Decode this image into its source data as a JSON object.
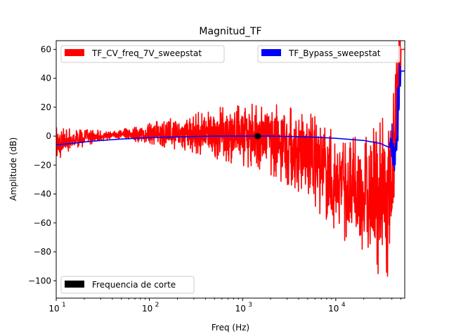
{
  "chart_data": {
    "type": "line",
    "title": "Magnitud_TF",
    "xlabel": "Freq (Hz)",
    "ylabel": "Amplitude (dB)",
    "xscale": "log",
    "xlim": [
      10,
      55000
    ],
    "ylim": [
      -112,
      66
    ],
    "grid": false,
    "x_ticks": [
      {
        "value": 10,
        "base": "10",
        "exp": "1"
      },
      {
        "value": 100,
        "base": "10",
        "exp": "2"
      },
      {
        "value": 1000,
        "base": "10",
        "exp": "3"
      },
      {
        "value": 10000,
        "base": "10",
        "exp": "4"
      }
    ],
    "y_ticks": [
      {
        "value": 60,
        "label": "60"
      },
      {
        "value": 40,
        "label": "40"
      },
      {
        "value": 20,
        "label": "20"
      },
      {
        "value": 0,
        "label": "0"
      },
      {
        "value": -20,
        "label": "−20"
      },
      {
        "value": -40,
        "label": "−40"
      },
      {
        "value": -60,
        "label": "−60"
      },
      {
        "value": -80,
        "label": "−80"
      },
      {
        "value": -100,
        "label": "−100"
      }
    ],
    "legends": [
      {
        "label": "TF_CV_freq_7V_sweepstat",
        "color": "#ff0000",
        "placement": "upper left"
      },
      {
        "label": "TF_Bypass_sweepstat",
        "color": "#0000ff",
        "placement": "upper right"
      },
      {
        "label": "Frequencia de corte",
        "color": "#000000",
        "placement": "lower left"
      }
    ],
    "series": [
      {
        "name": "TF_CV_freq_7V_sweepstat",
        "color": "#ff0000",
        "x": [
          10,
          12,
          15,
          20,
          30,
          40,
          60,
          100,
          200,
          400,
          700,
          1000,
          1500,
          2000,
          3000,
          5000,
          7000,
          10000,
          15000,
          20000,
          25000,
          30000,
          35000,
          38000,
          40000,
          42000,
          44000,
          46000,
          48000,
          50000
        ],
        "y": [
          -6,
          -3,
          -2,
          -1,
          0,
          1,
          1.5,
          2,
          2,
          2,
          1.5,
          1,
          0,
          -2,
          -6,
          -14,
          -22,
          -32,
          -38,
          -40,
          -41,
          -42,
          -42,
          -42,
          -30,
          -10,
          10,
          30,
          50,
          60
        ],
        "noise_band": {
          "x": [
            10,
            12,
            15,
            20,
            30,
            40,
            20000,
            25000,
            30000,
            35000,
            38000,
            44000,
            47000,
            50000
          ],
          "amplitude": [
            14,
            10,
            8,
            6,
            4,
            2,
            40,
            50,
            55,
            55,
            55,
            40,
            30,
            20
          ]
        }
      },
      {
        "name": "TF_Bypass_sweepstat",
        "color": "#0000ff",
        "x": [
          10,
          15,
          20,
          30,
          50,
          100,
          200,
          500,
          1000,
          2000,
          5000,
          10000,
          20000,
          30000,
          38000,
          40000,
          42000,
          44000,
          46000,
          48000,
          50000
        ],
        "y": [
          -6,
          -5,
          -4,
          -3,
          -2,
          -1,
          -0.5,
          0,
          0,
          0,
          -0.5,
          -1.5,
          -3,
          -5,
          -8,
          -10,
          -15,
          -5,
          10,
          30,
          45
        ],
        "noise_band": {
          "x": [
            38000,
            42000,
            46000,
            50000
          ],
          "amplitude": [
            10,
            30,
            25,
            15
          ]
        }
      },
      {
        "name": "Frequencia de corte",
        "color": "#000000",
        "marker": "point",
        "x": [
          1450
        ],
        "y": [
          0
        ]
      }
    ]
  }
}
